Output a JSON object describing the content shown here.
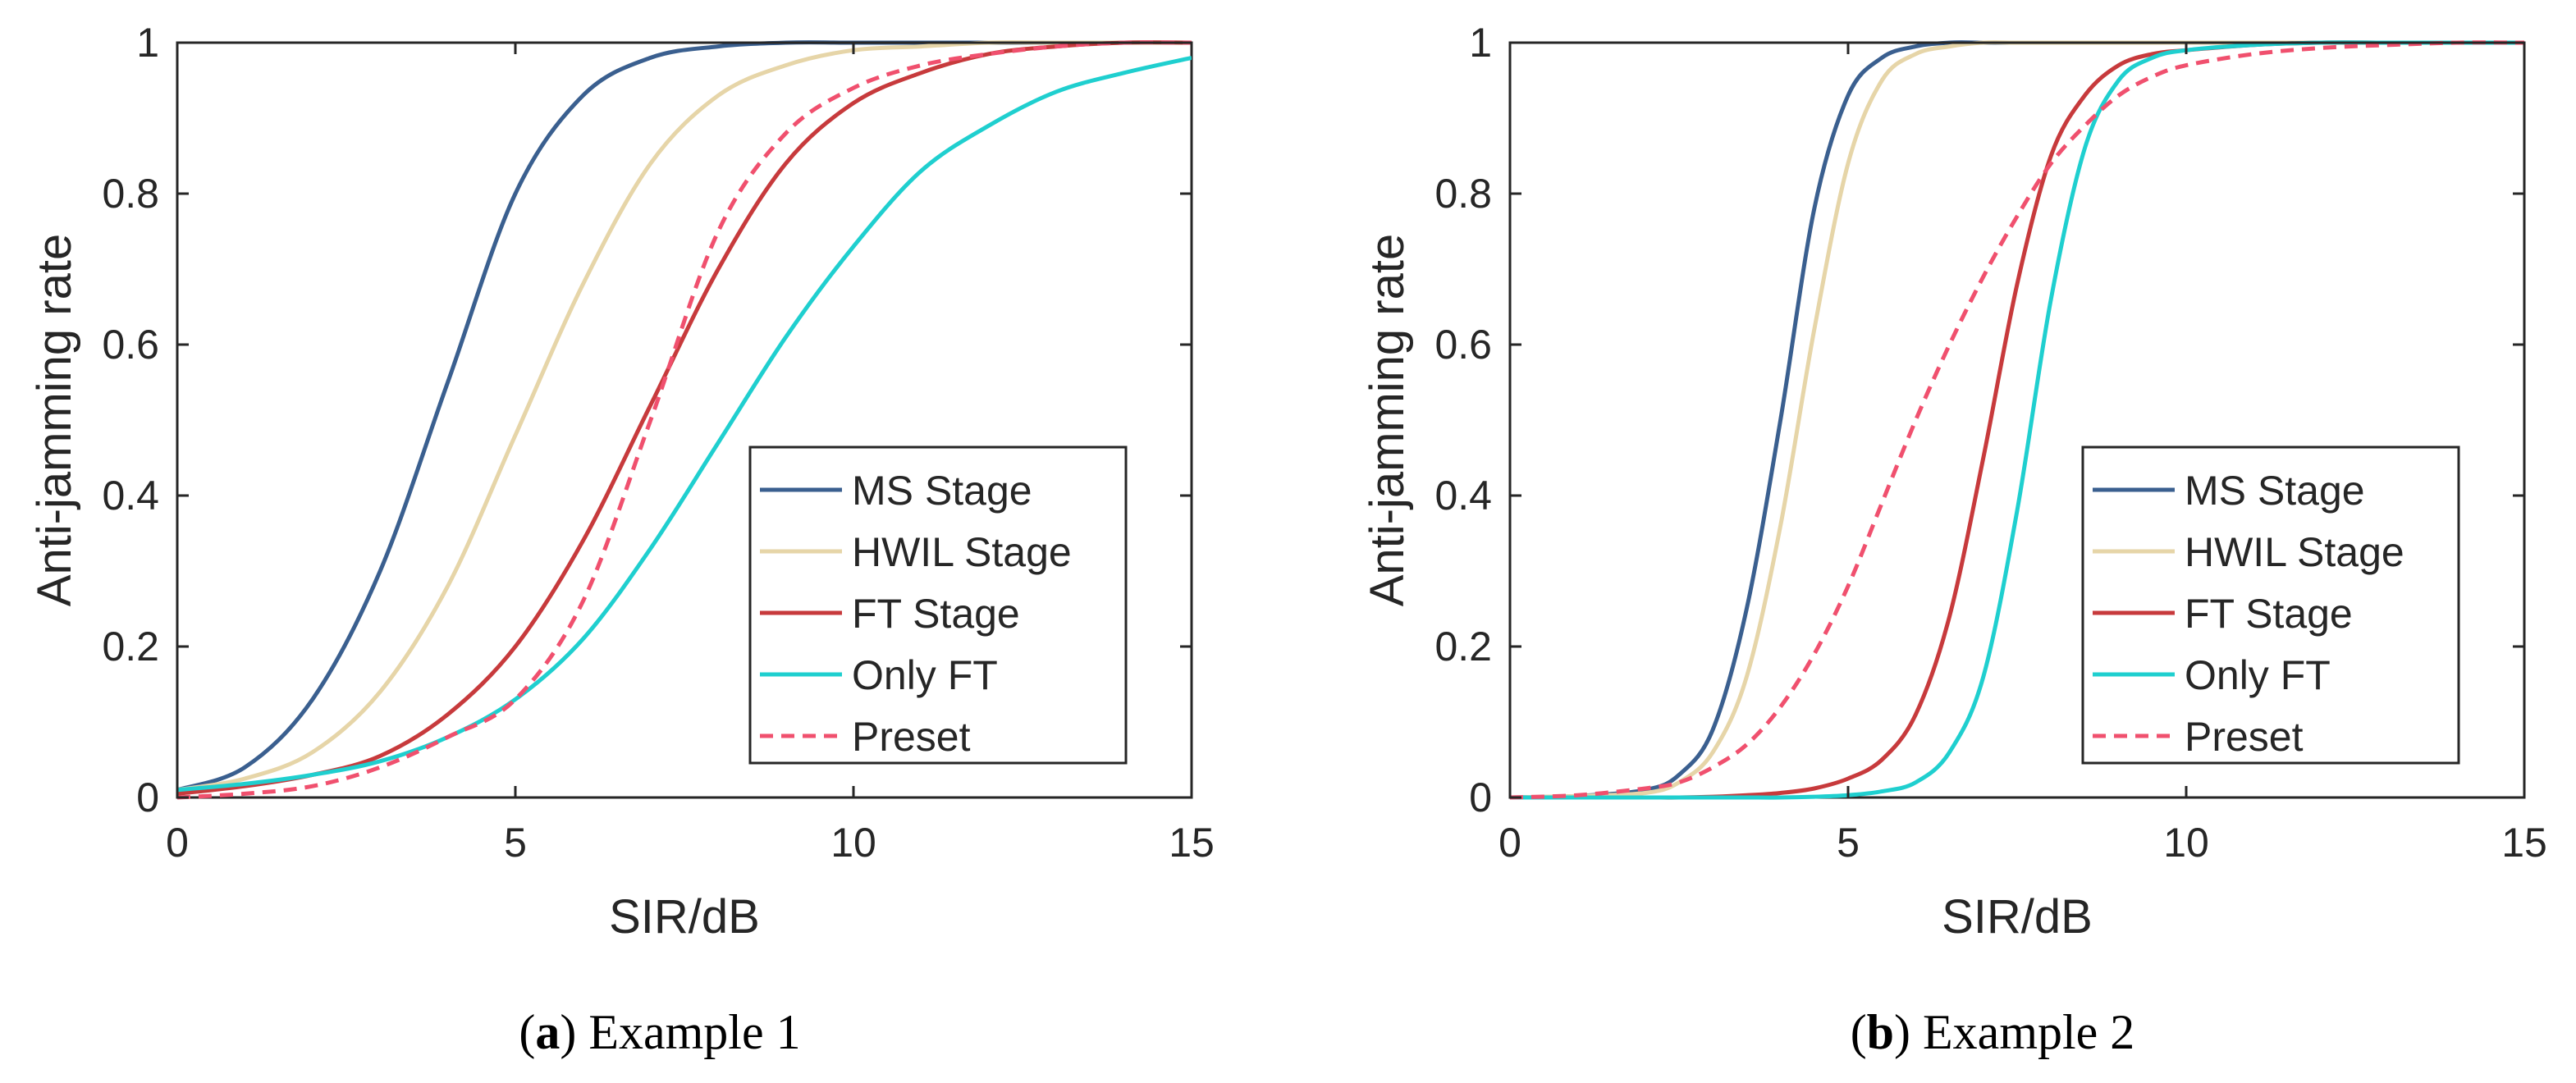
{
  "chart_data": [
    {
      "type": "line",
      "title": "",
      "xlabel": "SIR/dB",
      "ylabel": "Anti-jamming rate",
      "xlim": [
        0,
        15
      ],
      "ylim": [
        0,
        1
      ],
      "xticks": [
        0,
        5,
        10,
        15
      ],
      "yticks": [
        0,
        0.2,
        0.4,
        0.6,
        0.8,
        1
      ],
      "xtick_labels": [
        "0",
        "5",
        "10",
        "15"
      ],
      "ytick_labels": [
        "0",
        "0.2",
        "0.4",
        "0.6",
        "0.8",
        "1"
      ],
      "grid": false,
      "legend_position": "bottom-right",
      "caption_label": "(a)",
      "caption_letter": "a",
      "caption_text": "Example 1",
      "x": [
        0,
        1,
        2,
        3,
        4,
        5,
        6,
        7,
        8,
        9,
        10,
        11,
        12,
        13,
        14,
        15
      ],
      "series": [
        {
          "name": "MS Stage",
          "color": "#3a5f8f",
          "dash": "solid",
          "values": [
            0.01,
            0.04,
            0.13,
            0.3,
            0.55,
            0.8,
            0.93,
            0.98,
            0.995,
            1.0,
            1.0,
            1.0,
            1.0,
            1.0,
            1.0,
            1.0
          ]
        },
        {
          "name": "HWIL Stage",
          "color": "#e6d5a8",
          "dash": "solid",
          "values": [
            0.01,
            0.025,
            0.06,
            0.14,
            0.28,
            0.48,
            0.68,
            0.84,
            0.93,
            0.97,
            0.99,
            0.995,
            1.0,
            1.0,
            1.0,
            1.0
          ]
        },
        {
          "name": "FT Stage",
          "color": "#c73a3c",
          "dash": "solid",
          "values": [
            0.005,
            0.015,
            0.03,
            0.055,
            0.11,
            0.2,
            0.34,
            0.52,
            0.7,
            0.84,
            0.92,
            0.96,
            0.985,
            0.995,
            1.0,
            1.0
          ]
        },
        {
          "name": "Only FT",
          "color": "#1fcfcf",
          "dash": "solid",
          "values": [
            0.01,
            0.018,
            0.03,
            0.048,
            0.08,
            0.13,
            0.21,
            0.33,
            0.47,
            0.61,
            0.73,
            0.83,
            0.89,
            0.935,
            0.96,
            0.98
          ]
        },
        {
          "name": "Preset",
          "color": "#f0506e",
          "dash": "dashed",
          "values": [
            0.0,
            0.005,
            0.015,
            0.04,
            0.08,
            0.13,
            0.26,
            0.5,
            0.75,
            0.88,
            0.94,
            0.97,
            0.985,
            0.995,
            1.0,
            1.0
          ]
        }
      ]
    },
    {
      "type": "line",
      "title": "",
      "xlabel": "SIR/dB",
      "ylabel": "Anti-jamming rate",
      "xlim": [
        0,
        15
      ],
      "ylim": [
        0,
        1
      ],
      "xticks": [
        0,
        5,
        10,
        15
      ],
      "yticks": [
        0,
        0.2,
        0.4,
        0.6,
        0.8,
        1
      ],
      "xtick_labels": [
        "0",
        "5",
        "10",
        "15"
      ],
      "ytick_labels": [
        "0",
        "0.2",
        "0.4",
        "0.6",
        "0.8",
        "1"
      ],
      "grid": false,
      "legend_position": "bottom-right",
      "caption_label": "(b)",
      "caption_letter": "b",
      "caption_text": "Example 2",
      "x": [
        0,
        1,
        2,
        2.5,
        3,
        3.5,
        4,
        4.5,
        5,
        5.5,
        6,
        6.5,
        7,
        7.5,
        8,
        8.5,
        9,
        9.5,
        10,
        11,
        12,
        13,
        14,
        15
      ],
      "series": [
        {
          "name": "MS Stage",
          "color": "#3a5f8f",
          "dash": "solid",
          "values": [
            0.0,
            0.002,
            0.01,
            0.03,
            0.09,
            0.25,
            0.5,
            0.78,
            0.93,
            0.98,
            0.995,
            1.0,
            1.0,
            1.0,
            1.0,
            1.0,
            1.0,
            1.0,
            1.0,
            1.0,
            1.0,
            1.0,
            1.0,
            1.0
          ]
        },
        {
          "name": "HWIL Stage",
          "color": "#e6d5a8",
          "dash": "solid",
          "values": [
            0.0,
            0.002,
            0.006,
            0.02,
            0.06,
            0.16,
            0.36,
            0.62,
            0.84,
            0.95,
            0.985,
            0.995,
            1.0,
            1.0,
            1.0,
            1.0,
            1.0,
            1.0,
            1.0,
            1.0,
            1.0,
            1.0,
            1.0,
            1.0
          ]
        },
        {
          "name": "FT Stage",
          "color": "#c73a3c",
          "dash": "solid",
          "values": [
            0.0,
            0.0,
            0.0,
            0.0,
            0.001,
            0.003,
            0.006,
            0.012,
            0.025,
            0.05,
            0.11,
            0.24,
            0.45,
            0.68,
            0.85,
            0.93,
            0.97,
            0.985,
            0.99,
            0.997,
            1.0,
            1.0,
            1.0,
            1.0
          ]
        },
        {
          "name": "Only FT",
          "color": "#1fcfcf",
          "dash": "solid",
          "values": [
            0.0,
            0.0,
            0.0,
            0.0,
            0.0,
            0.0,
            0.0,
            0.001,
            0.003,
            0.008,
            0.02,
            0.06,
            0.16,
            0.38,
            0.66,
            0.86,
            0.95,
            0.98,
            0.99,
            0.997,
            1.0,
            1.0,
            1.0,
            1.0
          ]
        },
        {
          "name": "Preset",
          "color": "#f0506e",
          "dash": "dashed",
          "values": [
            0.0,
            0.003,
            0.012,
            0.02,
            0.04,
            0.07,
            0.12,
            0.19,
            0.28,
            0.39,
            0.5,
            0.6,
            0.69,
            0.77,
            0.84,
            0.89,
            0.93,
            0.955,
            0.97,
            0.985,
            0.993,
            0.997,
            1.0,
            1.0
          ]
        }
      ]
    }
  ]
}
